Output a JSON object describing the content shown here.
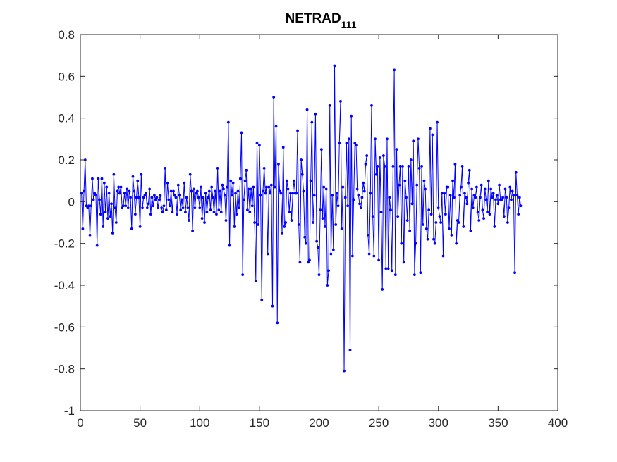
{
  "colors": {
    "series": "#0000ff",
    "axis": "#262626",
    "background": "#ffffff"
  },
  "chart_data": {
    "type": "line",
    "title": "NETRAD",
    "title_subscript": "111",
    "xlabel": "",
    "ylabel": "",
    "xlim": [
      0,
      400
    ],
    "ylim": [
      -1,
      0.8
    ],
    "xticks": [
      0,
      50,
      100,
      150,
      200,
      250,
      300,
      350,
      400
    ],
    "yticks": [
      -1,
      -0.8,
      -0.6,
      -0.4,
      -0.2,
      0,
      0.2,
      0.4,
      0.6,
      0.8
    ],
    "xtick_labels": [
      "0",
      "50",
      "100",
      "150",
      "200",
      "250",
      "300",
      "350",
      "400"
    ],
    "ytick_labels": [
      "-1",
      "-0.8",
      "-0.6",
      "-0.4",
      "-0.2",
      "0",
      "0.2",
      "0.4",
      "0.6",
      "0.8"
    ],
    "grid": false,
    "marker": "dot",
    "series": [
      {
        "color": "#0000ff",
        "x_start": 1,
        "x_step": 1,
        "values": [
          0.04,
          -0.13,
          0.05,
          0.2,
          -0.02,
          -0.03,
          -0.02,
          -0.16,
          -0.02,
          0.11,
          0.01,
          0.04,
          0.03,
          -0.21,
          0.11,
          0.01,
          -0.06,
          0.11,
          -0.12,
          0.09,
          -0.05,
          0.07,
          -0.08,
          0.04,
          -0.07,
          -0.01,
          -0.15,
          0.13,
          -0.03,
          -0.1,
          0.05,
          0.07,
          0.04,
          0.07,
          -0.03,
          -0.02,
          0.04,
          -0.02,
          0.06,
          -0.03,
          0.05,
          0.02,
          -0.13,
          0.12,
          0.05,
          -0.06,
          0.02,
          0.1,
          0.02,
          -0.12,
          0.13,
          -0.03,
          0.02,
          0.03,
          0.04,
          -0.03,
          -0.01,
          0.06,
          -0.06,
          0.02,
          -0.02,
          0.03,
          0.01,
          0.02,
          -0.03,
          0.01,
          0.03,
          -0.03,
          -0.05,
          -0.02,
          0.16,
          -0.04,
          0.09,
          0.01,
          -0.02,
          0.05,
          -0.05,
          0.05,
          0.03,
          0.02,
          -0.06,
          0.08,
          0.03,
          -0.04,
          0.01,
          -0.03,
          0.09,
          -0.05,
          0.02,
          -0.03,
          -0.09,
          0.13,
          0.05,
          -0.14,
          0.06,
          -0.03,
          0.04,
          0.05,
          0.02,
          -0.03,
          0.07,
          -0.08,
          0.02,
          -0.1,
          0.04,
          -0.05,
          0.02,
          0.05,
          -0.04,
          0.07,
          0.02,
          -0.05,
          0.05,
          -0.06,
          0.16,
          -0.04,
          0.05,
          -0.05,
          0.08,
          0.06,
          0.03,
          -0.09,
          0.07,
          0.38,
          -0.21,
          0.1,
          0.03,
          0.09,
          -0.12,
          0.04,
          -0.06,
          0.05,
          -0.03,
          0.11,
          0.33,
          -0.35,
          0.01,
          0.1,
          0.15,
          -0.04,
          0.06,
          -0.05,
          0.06,
          -0.02,
          0.07,
          -0.1,
          -0.38,
          0.28,
          -0.11,
          0.27,
          0.03,
          -0.47,
          0.05,
          0.16,
          0.04,
          0.07,
          -0.25,
          0.07,
          0.04,
          0.08,
          -0.5,
          0.5,
          0.07,
          0.36,
          -0.58,
          0.18,
          0.05,
          0.04,
          -0.15,
          0.26,
          -0.12,
          -0.1,
          0.1,
          0.06,
          -0.05,
          0.04,
          -0.09,
          0.04,
          0.1,
          0.04,
          0.04,
          0.34,
          -0.11,
          -0.29,
          0.2,
          0.13,
          0.05,
          -0.17,
          -0.2,
          0.44,
          -0.29,
          -0.28,
          0.1,
          0.38,
          -0.1,
          0.03,
          0.42,
          -0.19,
          -0.22,
          -0.35,
          -0.04,
          0.25,
          -0.08,
          0.07,
          -0.12,
          0.06,
          -0.4,
          -0.33,
          0.46,
          -0.25,
          0.03,
          -0.23,
          0.65,
          -0.11,
          0.04,
          -0.02,
          0.28,
          0.48,
          -0.13,
          0.07,
          -0.81,
          0.02,
          0.28,
          -0.02,
          0.3,
          -0.71,
          0.41,
          -0.26,
          0.01,
          0.28,
          0.27,
          0.06,
          0.03,
          -0.01,
          -0.03,
          0.02,
          0.09,
          0.05,
          0.18,
          0.22,
          -0.16,
          -0.25,
          0.04,
          0.46,
          -0.07,
          -0.26,
          0.3,
          0.13,
          0.17,
          -0.28,
          0.21,
          -0.05,
          -0.42,
          0.22,
          0.17,
          -0.32,
          0.3,
          -0.32,
          0.02,
          -0.04,
          -0.33,
          0.17,
          0.63,
          -0.35,
          0.25,
          -0.07,
          0.08,
          0.17,
          -0.2,
          0.17,
          -0.29,
          0.1,
          0.02,
          -0.09,
          0.17,
          -0.14,
          0.2,
          -0.01,
          0.29,
          -0.35,
          -0.2,
          0.08,
          0.3,
          0.16,
          -0.34,
          0.17,
          -0.11,
          0.1,
          0.06,
          -0.13,
          -0.18,
          -0.04,
          0.35,
          -0.06,
          0.32,
          -0.18,
          -0.2,
          -0.1,
          0.38,
          -0.03,
          -0.07,
          -0.1,
          0.04,
          -0.26,
          0.04,
          -0.06,
          0.07,
          0.07,
          -0.13,
          0.03,
          -0.16,
          0.1,
          0.02,
          0.18,
          -0.2,
          -0.09,
          -0.1,
          0.03,
          0.07,
          0.17,
          -0.12,
          0.04,
          0.02,
          -0.01,
          0.09,
          0.15,
          -0.14,
          0.06,
          -0.03,
          0.03,
          0.02,
          0.07,
          -0.05,
          -0.09,
          0.02,
          0.08,
          -0.04,
          -0.08,
          0.06,
          0.01,
          -0.05,
          0.1,
          -0.06,
          0.06,
          0.02,
          0.04,
          -0.12,
          0.01,
          0.03,
          -0.01,
          0.08,
          0.01,
          0.01,
          0.02,
          -0.07,
          0.06,
          0.02,
          -0.1,
          -0.03,
          0.07,
          0.01,
          0.05,
          0.03,
          -0.34,
          0.14,
          0.03,
          -0.06,
          0.02,
          -0.02
        ]
      }
    ]
  }
}
